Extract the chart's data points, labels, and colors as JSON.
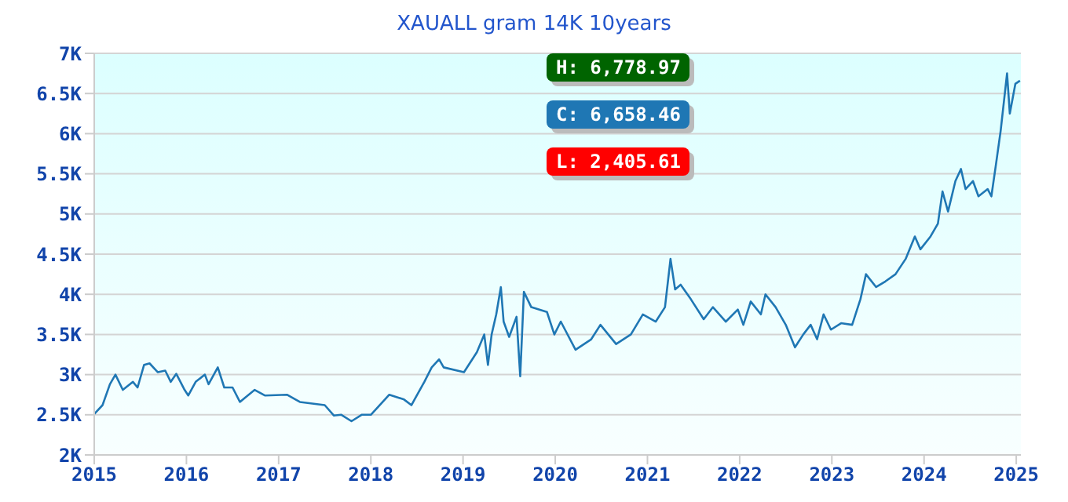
{
  "chart_data": {
    "type": "line",
    "title": "XAUALL gram 14K 10years",
    "x": [
      2015.0,
      2015.09,
      2015.17,
      2015.23,
      2015.31,
      2015.42,
      2015.47,
      2015.54,
      2015.6,
      2015.69,
      2015.77,
      2015.83,
      2015.89,
      2015.98,
      2016.02,
      2016.1,
      2016.2,
      2016.24,
      2016.34,
      2016.41,
      2016.5,
      2016.58,
      2016.74,
      2016.85,
      2017.09,
      2017.23,
      2017.5,
      2017.6,
      2017.68,
      2017.79,
      2017.9,
      2018.0,
      2018.2,
      2018.36,
      2018.44,
      2018.58,
      2018.66,
      2018.74,
      2018.79,
      2019.01,
      2019.15,
      2019.23,
      2019.27,
      2019.31,
      2019.36,
      2019.41,
      2019.44,
      2019.5,
      2019.58,
      2019.62,
      2019.66,
      2019.74,
      2019.91,
      2019.99,
      2020.06,
      2020.22,
      2020.39,
      2020.49,
      2020.66,
      2020.82,
      2020.95,
      2021.09,
      2021.19,
      2021.25,
      2021.3,
      2021.36,
      2021.47,
      2021.61,
      2021.71,
      2021.85,
      2021.98,
      2022.04,
      2022.12,
      2022.23,
      2022.28,
      2022.39,
      2022.5,
      2022.6,
      2022.69,
      2022.77,
      2022.84,
      2022.91,
      2022.99,
      2023.1,
      2023.22,
      2023.31,
      2023.37,
      2023.48,
      2023.58,
      2023.69,
      2023.8,
      2023.9,
      2023.96,
      2024.07,
      2024.15,
      2024.2,
      2024.26,
      2024.34,
      2024.4,
      2024.45,
      2024.53,
      2024.59,
      2024.69,
      2024.73,
      2024.78,
      2024.83,
      2024.9,
      2024.93,
      2024.99,
      2025.04
    ],
    "series": [
      {
        "color": "#1f77b4",
        "values": [
          2510,
          2620,
          2880,
          3000,
          2810,
          2910,
          2840,
          3120,
          3140,
          3030,
          3050,
          2910,
          3010,
          2810,
          2740,
          2910,
          3000,
          2880,
          3090,
          2840,
          2840,
          2660,
          2810,
          2740,
          2750,
          2660,
          2620,
          2490,
          2500,
          2420,
          2500,
          2500,
          2750,
          2690,
          2620,
          2910,
          3090,
          3190,
          3090,
          3030,
          3280,
          3500,
          3120,
          3500,
          3750,
          4090,
          3660,
          3470,
          3720,
          2980,
          4030,
          3840,
          3780,
          3500,
          3660,
          3310,
          3440,
          3620,
          3380,
          3500,
          3750,
          3660,
          3840,
          4440,
          4060,
          4120,
          3940,
          3690,
          3840,
          3660,
          3810,
          3620,
          3910,
          3750,
          4000,
          3840,
          3620,
          3340,
          3500,
          3620,
          3440,
          3750,
          3560,
          3640,
          3620,
          3940,
          4250,
          4090,
          4160,
          4250,
          4440,
          4720,
          4560,
          4720,
          4880,
          5280,
          5030,
          5410,
          5560,
          5310,
          5410,
          5220,
          5310,
          5220,
          5620,
          6030,
          6750,
          6250,
          6620,
          6660
        ]
      }
    ],
    "xlim": [
      2015,
      2025.05
    ],
    "xticks": [
      2015,
      2016,
      2017,
      2018,
      2019,
      2020,
      2021,
      2022,
      2023,
      2024,
      2025
    ],
    "ylim": [
      2000,
      7000
    ],
    "yticks": [
      {
        "value": 2000,
        "label": "2K"
      },
      {
        "value": 2500,
        "label": "2.5K"
      },
      {
        "value": 3000,
        "label": "3K"
      },
      {
        "value": 3500,
        "label": "3.5K"
      },
      {
        "value": 4000,
        "label": "4K"
      },
      {
        "value": 4500,
        "label": "4.5K"
      },
      {
        "value": 5000,
        "label": "5K"
      },
      {
        "value": 5500,
        "label": "5.5K"
      },
      {
        "value": 6000,
        "label": "6K"
      },
      {
        "value": 6500,
        "label": "6.5K"
      },
      {
        "value": 7000,
        "label": "7K"
      }
    ],
    "grid": "y",
    "marker": "none",
    "line_style": "solid",
    "annotations": [
      "H: 6,778.97",
      "C: 6,658.46",
      "L: 2,405.61"
    ]
  }
}
